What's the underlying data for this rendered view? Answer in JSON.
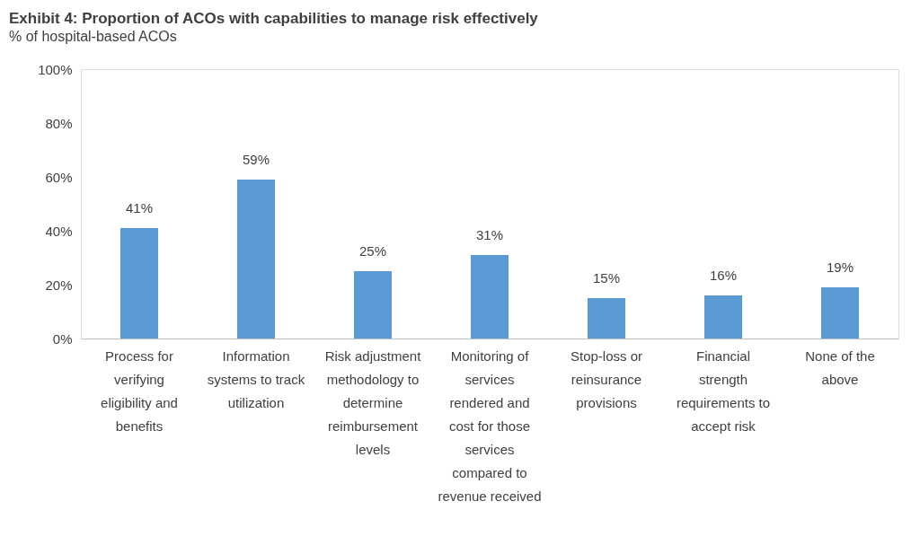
{
  "chart_data": {
    "type": "bar",
    "title": "Exhibit 4: Proportion of ACOs with capabilities to manage risk effectively",
    "subtitle": "% of hospital-based ACOs",
    "categories": [
      "Process for verifying eligibility and benefits",
      "Information systems to track utilization",
      "Risk adjustment methodology to determine reimbursement levels",
      "Monitoring of services rendered and cost for those services compared to revenue received",
      "Stop-loss or reinsurance provisions",
      "Financial strength requirements to accept risk",
      "None of the above"
    ],
    "values": [
      41,
      59,
      25,
      31,
      15,
      16,
      19
    ],
    "color": "#5b9bd5",
    "value_labels": [
      "41%",
      "59%",
      "25%",
      "31%",
      "15%",
      "16%",
      "19%"
    ],
    "ylim": [
      0,
      100
    ],
    "yticks": [
      {
        "value": 0,
        "label": "0%"
      },
      {
        "value": 20,
        "label": "20%"
      },
      {
        "value": 40,
        "label": "40%"
      },
      {
        "value": 60,
        "label": "60%"
      },
      {
        "value": 80,
        "label": "80%"
      },
      {
        "value": 100,
        "label": "100%"
      }
    ],
    "grid": false,
    "legend": false
  }
}
